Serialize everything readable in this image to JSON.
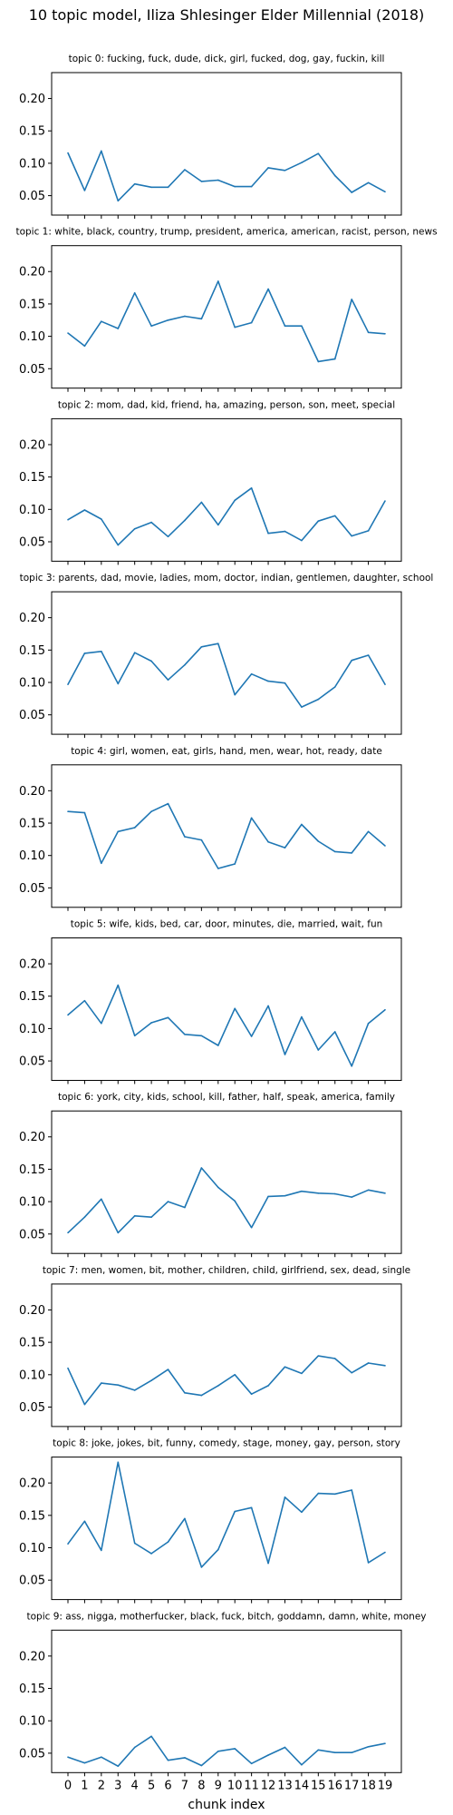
{
  "figure": {
    "title": "10 topic model, Iliza Shlesinger Elder Millennial (2018)",
    "xlabel": "chunk index"
  },
  "chart_data": [
    {
      "type": "line",
      "title": "topic 0: fucking, fuck, dude, dick, girl, fucked, dog, gay, fuckin, kill",
      "x": [
        0,
        1,
        2,
        3,
        4,
        5,
        6,
        7,
        8,
        9,
        10,
        11,
        12,
        13,
        14,
        15,
        16,
        17,
        18,
        19
      ],
      "series": [
        {
          "values": [
            0.116,
            0.058,
            0.119,
            0.042,
            0.068,
            0.063,
            0.063,
            0.09,
            0.072,
            0.074,
            0.064,
            0.064,
            0.093,
            0.089,
            0.101,
            0.115,
            0.081,
            0.055,
            0.07,
            0.056
          ]
        }
      ],
      "ylim": [
        0.02,
        0.24
      ],
      "yticks": [
        "0.05",
        "0.10",
        "0.15",
        "0.20"
      ],
      "color": "#1f77b4"
    },
    {
      "type": "line",
      "title": "topic 1: white, black, country, trump, president, america, american, racist, person, news",
      "x": [
        0,
        1,
        2,
        3,
        4,
        5,
        6,
        7,
        8,
        9,
        10,
        11,
        12,
        13,
        14,
        15,
        16,
        17,
        18,
        19
      ],
      "series": [
        {
          "values": [
            0.105,
            0.085,
            0.123,
            0.112,
            0.167,
            0.116,
            0.125,
            0.131,
            0.127,
            0.185,
            0.114,
            0.121,
            0.173,
            0.116,
            0.116,
            0.061,
            0.065,
            0.157,
            0.106,
            0.104
          ]
        }
      ],
      "ylim": [
        0.02,
        0.24
      ],
      "yticks": [
        "0.05",
        "0.10",
        "0.15",
        "0.20"
      ],
      "color": "#1f77b4"
    },
    {
      "type": "line",
      "title": "topic 2: mom, dad, kid, friend, ha, amazing, person, son, meet, special",
      "x": [
        0,
        1,
        2,
        3,
        4,
        5,
        6,
        7,
        8,
        9,
        10,
        11,
        12,
        13,
        14,
        15,
        16,
        17,
        18,
        19
      ],
      "series": [
        {
          "values": [
            0.084,
            0.099,
            0.085,
            0.045,
            0.07,
            0.08,
            0.058,
            0.083,
            0.111,
            0.076,
            0.114,
            0.133,
            0.063,
            0.066,
            0.052,
            0.082,
            0.09,
            0.059,
            0.067,
            0.113
          ]
        }
      ],
      "ylim": [
        0.02,
        0.24
      ],
      "yticks": [
        "0.05",
        "0.10",
        "0.15",
        "0.20"
      ],
      "color": "#1f77b4"
    },
    {
      "type": "line",
      "title": "topic 3: parents, dad, movie, ladies, mom, doctor, indian, gentlemen, daughter, school",
      "x": [
        0,
        1,
        2,
        3,
        4,
        5,
        6,
        7,
        8,
        9,
        10,
        11,
        12,
        13,
        14,
        15,
        16,
        17,
        18,
        19
      ],
      "series": [
        {
          "values": [
            0.097,
            0.145,
            0.148,
            0.098,
            0.146,
            0.133,
            0.104,
            0.127,
            0.155,
            0.16,
            0.081,
            0.113,
            0.102,
            0.099,
            0.062,
            0.074,
            0.093,
            0.134,
            0.142,
            0.097
          ]
        }
      ],
      "ylim": [
        0.02,
        0.24
      ],
      "yticks": [
        "0.05",
        "0.10",
        "0.15",
        "0.20"
      ],
      "color": "#1f77b4"
    },
    {
      "type": "line",
      "title": "topic 4: girl, women, eat, girls, hand, men, wear, hot, ready, date",
      "x": [
        0,
        1,
        2,
        3,
        4,
        5,
        6,
        7,
        8,
        9,
        10,
        11,
        12,
        13,
        14,
        15,
        16,
        17,
        18,
        19
      ],
      "series": [
        {
          "values": [
            0.168,
            0.166,
            0.088,
            0.137,
            0.143,
            0.168,
            0.18,
            0.129,
            0.124,
            0.08,
            0.087,
            0.158,
            0.121,
            0.112,
            0.148,
            0.122,
            0.106,
            0.104,
            0.137,
            0.115
          ]
        }
      ],
      "ylim": [
        0.02,
        0.24
      ],
      "yticks": [
        "0.05",
        "0.10",
        "0.15",
        "0.20"
      ],
      "color": "#1f77b4"
    },
    {
      "type": "line",
      "title": "topic 5: wife, kids, bed, car, door, minutes, die, married, wait, fun",
      "x": [
        0,
        1,
        2,
        3,
        4,
        5,
        6,
        7,
        8,
        9,
        10,
        11,
        12,
        13,
        14,
        15,
        16,
        17,
        18,
        19
      ],
      "series": [
        {
          "values": [
            0.121,
            0.143,
            0.108,
            0.167,
            0.089,
            0.109,
            0.117,
            0.091,
            0.089,
            0.074,
            0.131,
            0.088,
            0.135,
            0.06,
            0.118,
            0.067,
            0.095,
            0.042,
            0.108,
            0.129
          ]
        }
      ],
      "ylim": [
        0.02,
        0.24
      ],
      "yticks": [
        "0.05",
        "0.10",
        "0.15",
        "0.20"
      ],
      "color": "#1f77b4"
    },
    {
      "type": "line",
      "title": "topic 6: york, city, kids, school, kill, father, half, speak, america, family",
      "x": [
        0,
        1,
        2,
        3,
        4,
        5,
        6,
        7,
        8,
        9,
        10,
        11,
        12,
        13,
        14,
        15,
        16,
        17,
        18,
        19
      ],
      "series": [
        {
          "values": [
            0.052,
            0.076,
            0.104,
            0.052,
            0.078,
            0.076,
            0.1,
            0.091,
            0.152,
            0.122,
            0.101,
            0.06,
            0.108,
            0.109,
            0.116,
            0.113,
            0.112,
            0.107,
            0.118,
            0.113
          ]
        }
      ],
      "ylim": [
        0.02,
        0.24
      ],
      "yticks": [
        "0.05",
        "0.10",
        "0.15",
        "0.20"
      ],
      "color": "#1f77b4"
    },
    {
      "type": "line",
      "title": "topic 7: men, women, bit, mother, children, child, girlfriend, sex, dead, single",
      "x": [
        0,
        1,
        2,
        3,
        4,
        5,
        6,
        7,
        8,
        9,
        10,
        11,
        12,
        13,
        14,
        15,
        16,
        17,
        18,
        19
      ],
      "series": [
        {
          "values": [
            0.11,
            0.054,
            0.087,
            0.084,
            0.076,
            0.091,
            0.108,
            0.072,
            0.068,
            0.083,
            0.1,
            0.07,
            0.083,
            0.112,
            0.102,
            0.129,
            0.125,
            0.103,
            0.118,
            0.114
          ]
        }
      ],
      "ylim": [
        0.02,
        0.24
      ],
      "yticks": [
        "0.05",
        "0.10",
        "0.15",
        "0.20"
      ],
      "color": "#1f77b4"
    },
    {
      "type": "line",
      "title": "topic 8: joke, jokes, bit, funny, comedy, stage, money, gay, person, story",
      "x": [
        0,
        1,
        2,
        3,
        4,
        5,
        6,
        7,
        8,
        9,
        10,
        11,
        12,
        13,
        14,
        15,
        16,
        17,
        18,
        19
      ],
      "series": [
        {
          "values": [
            0.106,
            0.141,
            0.096,
            0.232,
            0.107,
            0.091,
            0.109,
            0.145,
            0.07,
            0.097,
            0.156,
            0.162,
            0.076,
            0.178,
            0.155,
            0.184,
            0.183,
            0.189,
            0.077,
            0.093
          ]
        }
      ],
      "ylim": [
        0.02,
        0.24
      ],
      "yticks": [
        "0.05",
        "0.10",
        "0.15",
        "0.20"
      ],
      "color": "#1f77b4"
    },
    {
      "type": "line",
      "title": "topic 9: ass, nigga, motherfucker, black, fuck, bitch, goddamn, damn, white, money",
      "x": [
        0,
        1,
        2,
        3,
        4,
        5,
        6,
        7,
        8,
        9,
        10,
        11,
        12,
        13,
        14,
        15,
        16,
        17,
        18,
        19
      ],
      "series": [
        {
          "values": [
            0.044,
            0.035,
            0.044,
            0.03,
            0.059,
            0.076,
            0.039,
            0.043,
            0.031,
            0.053,
            0.057,
            0.034,
            0.047,
            0.059,
            0.032,
            0.055,
            0.051,
            0.051,
            0.06,
            0.065
          ]
        }
      ],
      "ylim": [
        0.02,
        0.24
      ],
      "yticks": [
        "0.05",
        "0.10",
        "0.15",
        "0.20"
      ],
      "xticks": [
        "0",
        "1",
        "2",
        "3",
        "4",
        "5",
        "6",
        "7",
        "8",
        "9",
        "10",
        "11",
        "12",
        "13",
        "14",
        "15",
        "16",
        "17",
        "18",
        "19"
      ],
      "color": "#1f77b4"
    }
  ]
}
